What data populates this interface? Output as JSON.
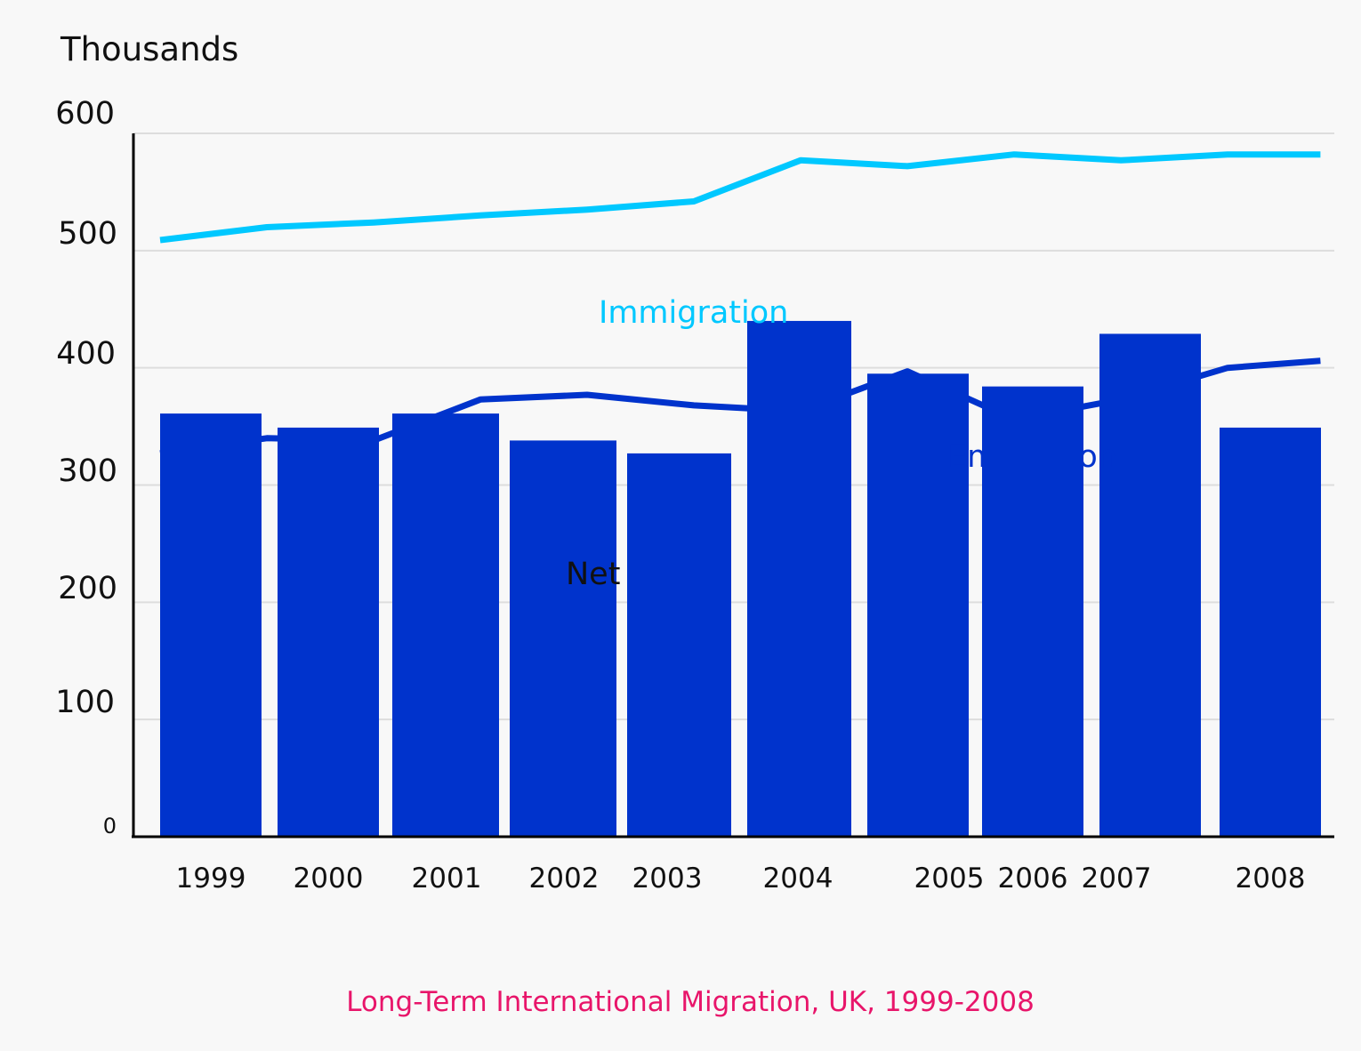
{
  "chart_data": {
    "type": "bar",
    "title": "Long-Term International Migration, UK, 1999-2008",
    "ylabel": "Thousands",
    "xlabel": "",
    "ylim": [
      0,
      600
    ],
    "yticks": [
      "0",
      "100",
      "200",
      "300",
      "400",
      "500",
      "600"
    ],
    "grid": true,
    "categories": [
      "1999",
      "2000",
      "2001",
      "2002",
      "2003",
      "2004",
      "2005",
      "2006",
      "2007",
      "2008"
    ],
    "series": [
      {
        "name": "Net",
        "type": "bar",
        "color": "#0033cc",
        "values": [
          361,
          349,
          361,
          338,
          327,
          440,
          395,
          384,
          429,
          349
        ]
      },
      {
        "name": "Immigration",
        "type": "line",
        "color": "#00c8ff",
        "x": [
          1998.75,
          1999.75,
          2000.75,
          2001.75,
          2002.75,
          2003.75,
          2004.75,
          2005.75,
          2006.75,
          2007.75,
          2008.75,
          2009.62
        ],
        "values": [
          509,
          520,
          524,
          530,
          535,
          542,
          577,
          572,
          582,
          577,
          582,
          582
        ]
      },
      {
        "name": "Emigration",
        "type": "line",
        "color": "#0033cc",
        "x": [
          1998.75,
          1999.75,
          2000.75,
          2001.75,
          2002.75,
          2003.75,
          2004.75,
          2005.75,
          2006.75,
          2007.75,
          2008.75,
          2009.62
        ],
        "values": [
          327,
          340,
          338,
          373,
          377,
          368,
          363,
          397,
          356,
          373,
          400,
          406
        ]
      }
    ],
    "series_labels": {
      "immigration": "Immigration",
      "emigration": "Emigration",
      "net": "Net"
    }
  }
}
